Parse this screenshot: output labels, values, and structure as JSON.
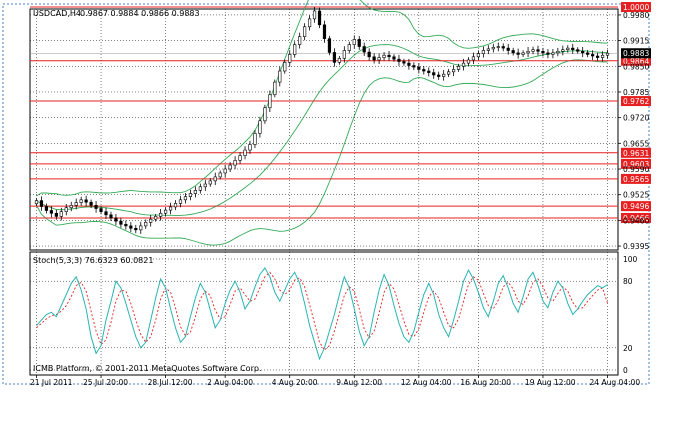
{
  "header": {
    "symbol_label": "USDCAD,H4",
    "ohlc": "0.9867 0.9884 0.9866 0.9883"
  },
  "stoch": {
    "label": "Stoch(5,3,3) 76.6323 60.0821",
    "levels": [
      "100",
      "80",
      "20",
      "0"
    ]
  },
  "footer": {
    "copyright": "ICMB Platform, © 2001-2011 MetaQuotes Software Corp."
  },
  "colors": {
    "background": "#ffffff",
    "grid": "#000000",
    "candle": "#000000",
    "bands": "#33aa55",
    "level_line": "#e62020",
    "level_label_bg": "#e62020",
    "current_price_bg": "#000000",
    "stoch_main": "#2bb3b3",
    "stoch_signal": "#e62020"
  },
  "chart_data": [
    {
      "type": "candlestick",
      "symbol": "USDCAD",
      "timeframe": "H4",
      "ylim": [
        0.9385,
        0.9995
      ],
      "y_ticks": [
        "0.9980",
        "0.9915",
        "0.9850",
        "0.9785",
        "0.9720",
        "0.9655",
        "0.9590",
        "0.9525",
        "0.9460",
        "0.9395"
      ],
      "x_ticks": [
        "21 Jul 2011",
        "25 Jul 20:00",
        "28 Jul 12:00",
        "2 Aug 04:00",
        "4 Aug 20:00",
        "9 Aug 12:00",
        "12 Aug 04:00",
        "16 Aug 20:00",
        "19 Aug 12:00",
        "24 Aug 04:00"
      ],
      "horizontal_levels": [
        "1.0000",
        "0.9864",
        "0.9762",
        "0.9631",
        "0.9603",
        "0.9565",
        "0.9496",
        "0.9466"
      ],
      "current_price": "0.9883",
      "closes": [
        0.951,
        0.9495,
        0.9485,
        0.9478,
        0.947,
        0.9482,
        0.9492,
        0.9498,
        0.9505,
        0.9512,
        0.9506,
        0.9498,
        0.949,
        0.9482,
        0.9474,
        0.9466,
        0.9458,
        0.945,
        0.9446,
        0.944,
        0.9436,
        0.9446,
        0.9455,
        0.9463,
        0.947,
        0.9478,
        0.9486,
        0.9494,
        0.9503,
        0.9512,
        0.952,
        0.9528,
        0.9536,
        0.9545,
        0.9552,
        0.956,
        0.957,
        0.958,
        0.959,
        0.96,
        0.9612,
        0.9624,
        0.9638,
        0.9652,
        0.968,
        0.9712,
        0.9745,
        0.9778,
        0.981,
        0.9838,
        0.986,
        0.988,
        0.9905,
        0.9925,
        0.995,
        0.997,
        0.999,
        0.9955,
        0.992,
        0.9885,
        0.986,
        0.987,
        0.989,
        0.9905,
        0.9918,
        0.99,
        0.9886,
        0.9874,
        0.9866,
        0.9872,
        0.9878,
        0.9874,
        0.9868,
        0.9862,
        0.9858,
        0.9852,
        0.9848,
        0.9842,
        0.9838,
        0.9834,
        0.9828,
        0.9824,
        0.983,
        0.9836,
        0.9842,
        0.985,
        0.9858,
        0.9866,
        0.9874,
        0.9882,
        0.989,
        0.9894,
        0.9898,
        0.99,
        0.9896,
        0.989,
        0.9884,
        0.988,
        0.9884,
        0.9888,
        0.9892,
        0.9888,
        0.9884,
        0.988,
        0.9884,
        0.9888,
        0.9892,
        0.9896,
        0.9892,
        0.9888,
        0.9884,
        0.988,
        0.9876,
        0.9872,
        0.9878,
        0.9883
      ]
    },
    {
      "type": "line",
      "title": "Stoch(5,3,3) 76.6323 60.0821",
      "ylim": [
        0,
        100
      ],
      "y_ticks": [
        100,
        80,
        20,
        0
      ],
      "series": [
        {
          "name": "Stoch main",
          "values": [
            40,
            45,
            50,
            52,
            48,
            58,
            68,
            78,
            84,
            72,
            55,
            30,
            15,
            22,
            45,
            62,
            80,
            74,
            60,
            45,
            30,
            20,
            25,
            45,
            65,
            82,
            74,
            55,
            38,
            25,
            30,
            48,
            65,
            78,
            70,
            54,
            38,
            45,
            60,
            72,
            80,
            70,
            55,
            62,
            75,
            86,
            92,
            84,
            70,
            62,
            72,
            82,
            88,
            78,
            60,
            40,
            25,
            10,
            20,
            35,
            50,
            68,
            84,
            74,
            55,
            35,
            22,
            30,
            52,
            72,
            86,
            76,
            58,
            42,
            30,
            25,
            35,
            52,
            68,
            78,
            68,
            50,
            38,
            30,
            45,
            62,
            80,
            90,
            82,
            70,
            56,
            48,
            62,
            78,
            85,
            74,
            60,
            52,
            66,
            82,
            88,
            76,
            62,
            56,
            70,
            80,
            74,
            60,
            50,
            55,
            62,
            68,
            72,
            76,
            74,
            77
          ]
        },
        {
          "name": "Signal",
          "values": [
            38,
            42,
            46,
            49,
            50,
            53,
            58,
            66,
            76,
            79,
            71,
            53,
            35,
            23,
            27,
            43,
            62,
            72,
            71,
            60,
            45,
            32,
            25,
            30,
            45,
            64,
            74,
            70,
            56,
            39,
            31,
            34,
            48,
            64,
            71,
            67,
            54,
            46,
            48,
            59,
            71,
            74,
            68,
            62,
            64,
            74,
            84,
            88,
            82,
            72,
            68,
            72,
            81,
            83,
            75,
            59,
            42,
            25,
            18,
            22,
            35,
            51,
            67,
            75,
            71,
            55,
            37,
            29,
            35,
            51,
            70,
            78,
            73,
            59,
            44,
            32,
            30,
            37,
            52,
            66,
            71,
            65,
            52,
            40,
            38,
            46,
            62,
            77,
            84,
            81,
            69,
            58,
            55,
            63,
            75,
            79,
            73,
            62,
            59,
            67,
            79,
            82,
            75,
            65,
            62,
            69,
            75,
            71,
            61,
            55,
            56,
            62,
            67,
            72,
            74,
            60
          ]
        }
      ]
    }
  ]
}
